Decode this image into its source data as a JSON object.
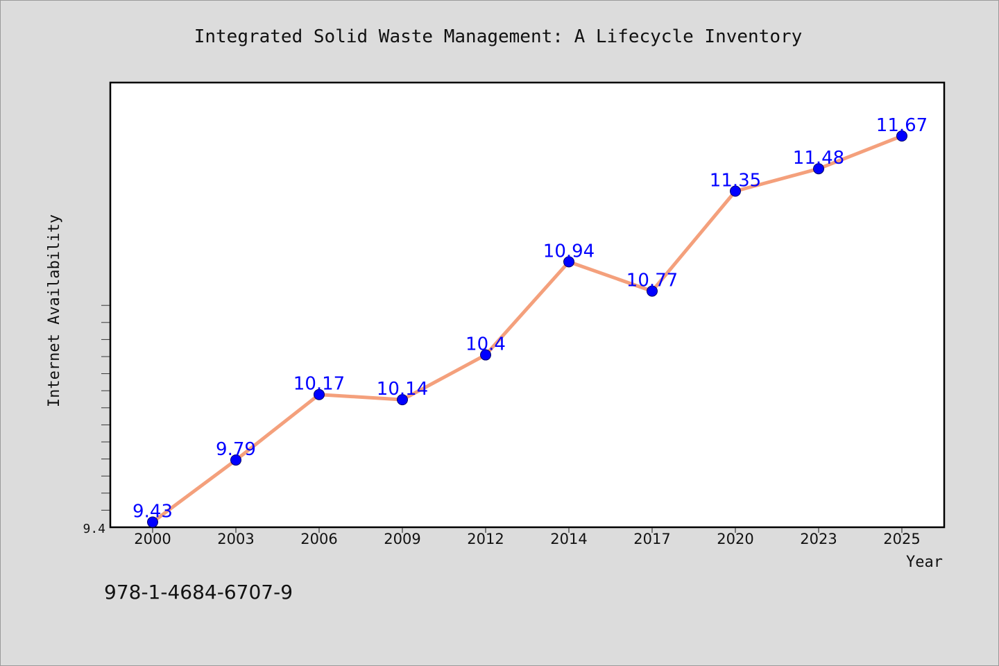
{
  "chart_data": {
    "type": "line",
    "title": "Integrated Solid Waste Management: A Lifecycle Inventory",
    "xlabel": "Year",
    "ylabel": "Internet Availability",
    "categories": [
      "2000",
      "2003",
      "2006",
      "2009",
      "2012",
      "2014",
      "2017",
      "2020",
      "2023",
      "2025"
    ],
    "series": [
      {
        "values": [
          9.43,
          9.79,
          10.17,
          10.14,
          10.4,
          10.94,
          10.77,
          11.35,
          11.48,
          11.67
        ],
        "line_color": "#f4a07c",
        "marker_color": "#0000ff"
      }
    ],
    "data_labels": [
      "9.43",
      "9.79",
      "10.17",
      "10.14",
      "10.4",
      "10.94",
      "10.77",
      "11.35",
      "11.48",
      "11.67"
    ],
    "ylim": [
      9.4,
      11.98
    ],
    "y_tick_labels": [
      "9.4"
    ],
    "label_color": "#0000ff",
    "grid": false
  },
  "footnote": "978-1-4684-6707-9"
}
